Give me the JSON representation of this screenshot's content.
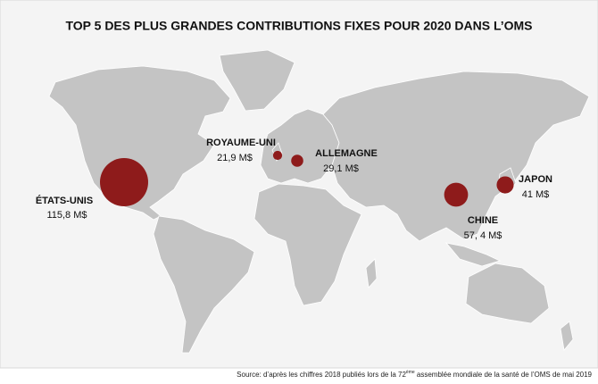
{
  "title": "TOP 5 DES PLUS GRANDES CONTRIBUTIONS FIXES POUR 2020 DANS L’OMS",
  "bubbles": [
    {
      "name": "ÉTATS-UNIS",
      "value": 115.8,
      "value_label": "115,8 M$"
    },
    {
      "name": "ROYAUME-UNI",
      "value": 21.9,
      "value_label": "21,9 M$"
    },
    {
      "name": "ALLEMAGNE",
      "value": 29.1,
      "value_label": "29,1 M$"
    },
    {
      "name": "CHINE",
      "value": 57.4,
      "value_label": "57, 4 M$"
    },
    {
      "name": "JAPON",
      "value": 41,
      "value_label": "41 M$"
    }
  ],
  "color": "#8e1b1b",
  "source": {
    "before": "Source: d’après les chiffres 2018 publiés lors de la  72",
    "sup": "ème",
    "after": " assemblée mondiale de la santé de l’OMS de mai 2019"
  }
}
